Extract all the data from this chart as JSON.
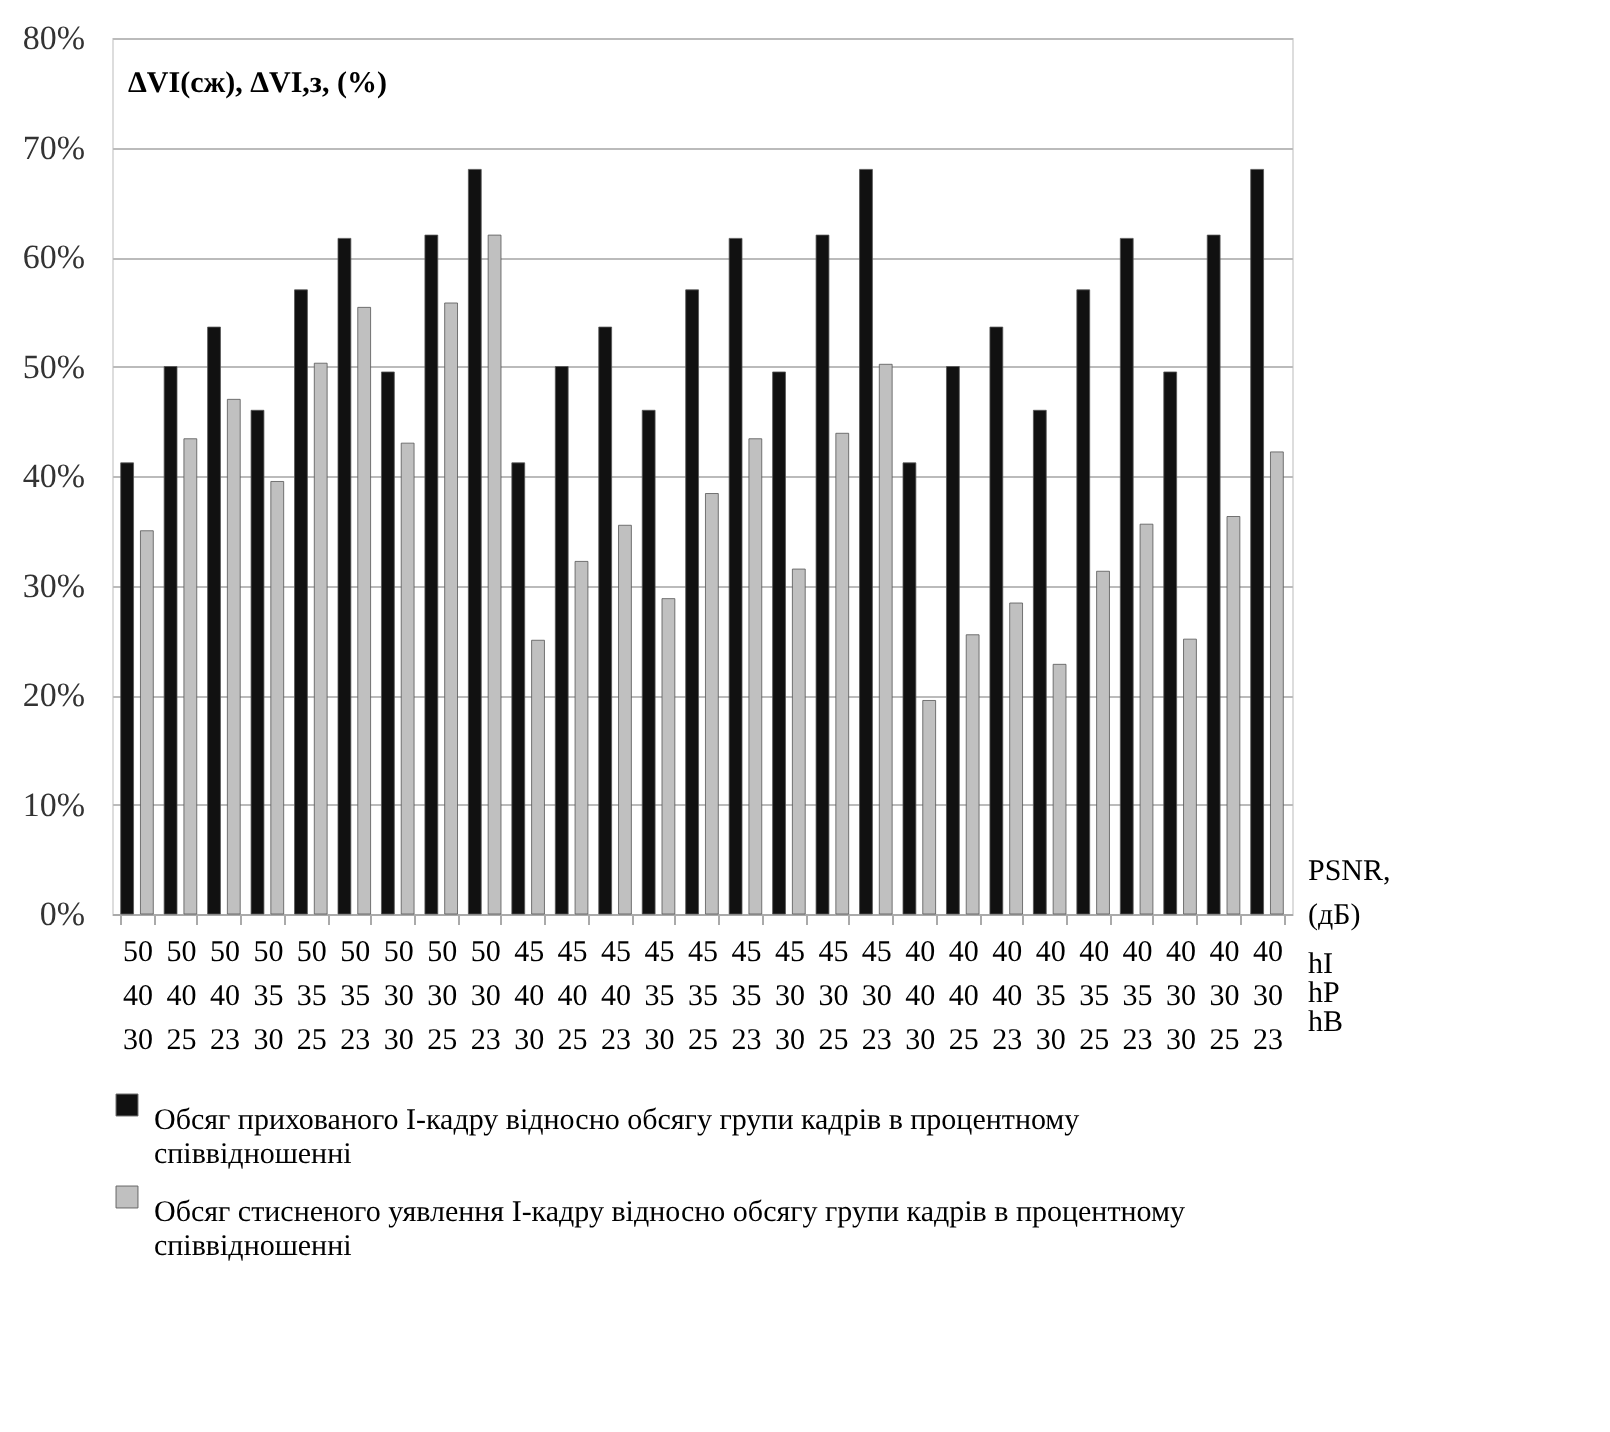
{
  "chart_data": {
    "type": "bar",
    "ylabel": "ΔVI(сж), ΔVI,з, (%)",
    "xlabel": "PSNR, (дБ)",
    "annotations": [
      "hI",
      "hP",
      "hB"
    ],
    "categories": [
      "50\n40\n30",
      "50\n40\n25",
      "50\n40\n23",
      "50\n35\n30",
      "50\n35\n25",
      "50\n35\n23",
      "50\n30\n30",
      "50\n30\n25",
      "50\n30\n23",
      "45\n40\n30",
      "45\n40\n25",
      "45\n40\n23",
      "45\n35\n30",
      "45\n35\n25",
      "45\n35\n23",
      "45\n30\n30",
      "45\n30\n25",
      "45\n30\n23",
      "40\n40\n30",
      "40\n40\n25",
      "40\n40\n23",
      "40\n35\n30",
      "40\n35\n25",
      "40\n35\n23",
      "40\n30\n30",
      "40\n30\n25",
      "40\n30\n23"
    ],
    "series": [
      {
        "name": "Обсяг прихованого I-кадру відносно обсягу групи кадрів в процентному співвідношенні",
        "color": "#111111",
        "values": [
          41.2,
          50,
          53.6,
          46,
          57,
          61.7,
          49.5,
          62,
          68,
          41.2,
          50,
          53.6,
          46,
          57,
          61.7,
          49.5,
          62,
          68,
          41.2,
          50,
          53.6,
          46,
          57,
          61.7,
          49.5,
          62,
          68
        ]
      },
      {
        "name": "Обсяг стисненого уявлення I-кадру відносно обсягу групи кадрів в процентному співвідношенні",
        "color": "#c0c0c0",
        "values": [
          35,
          43.4,
          47,
          39.5,
          50.3,
          55.4,
          43,
          55.8,
          62,
          25,
          32.2,
          35.5,
          28.8,
          38.4,
          43.4,
          31.5,
          43.9,
          50.2,
          19.5,
          25.5,
          28.4,
          22.8,
          31.3,
          35.6,
          25.1,
          36.3,
          42.2
        ]
      }
    ],
    "ylim": [
      0,
      80
    ],
    "yticks": [
      {
        "value": 0,
        "label": "0%"
      },
      {
        "value": 10,
        "label": "10%"
      },
      {
        "value": 20,
        "label": "20%"
      },
      {
        "value": 30,
        "label": "30%"
      },
      {
        "value": 40,
        "label": "40%"
      },
      {
        "value": 50,
        "label": "50%"
      },
      {
        "value": 60,
        "label": "60%"
      },
      {
        "value": 70,
        "label": "70%"
      },
      {
        "value": 80,
        "label": "80%"
      }
    ],
    "grid": "y",
    "legend": "bottom"
  }
}
